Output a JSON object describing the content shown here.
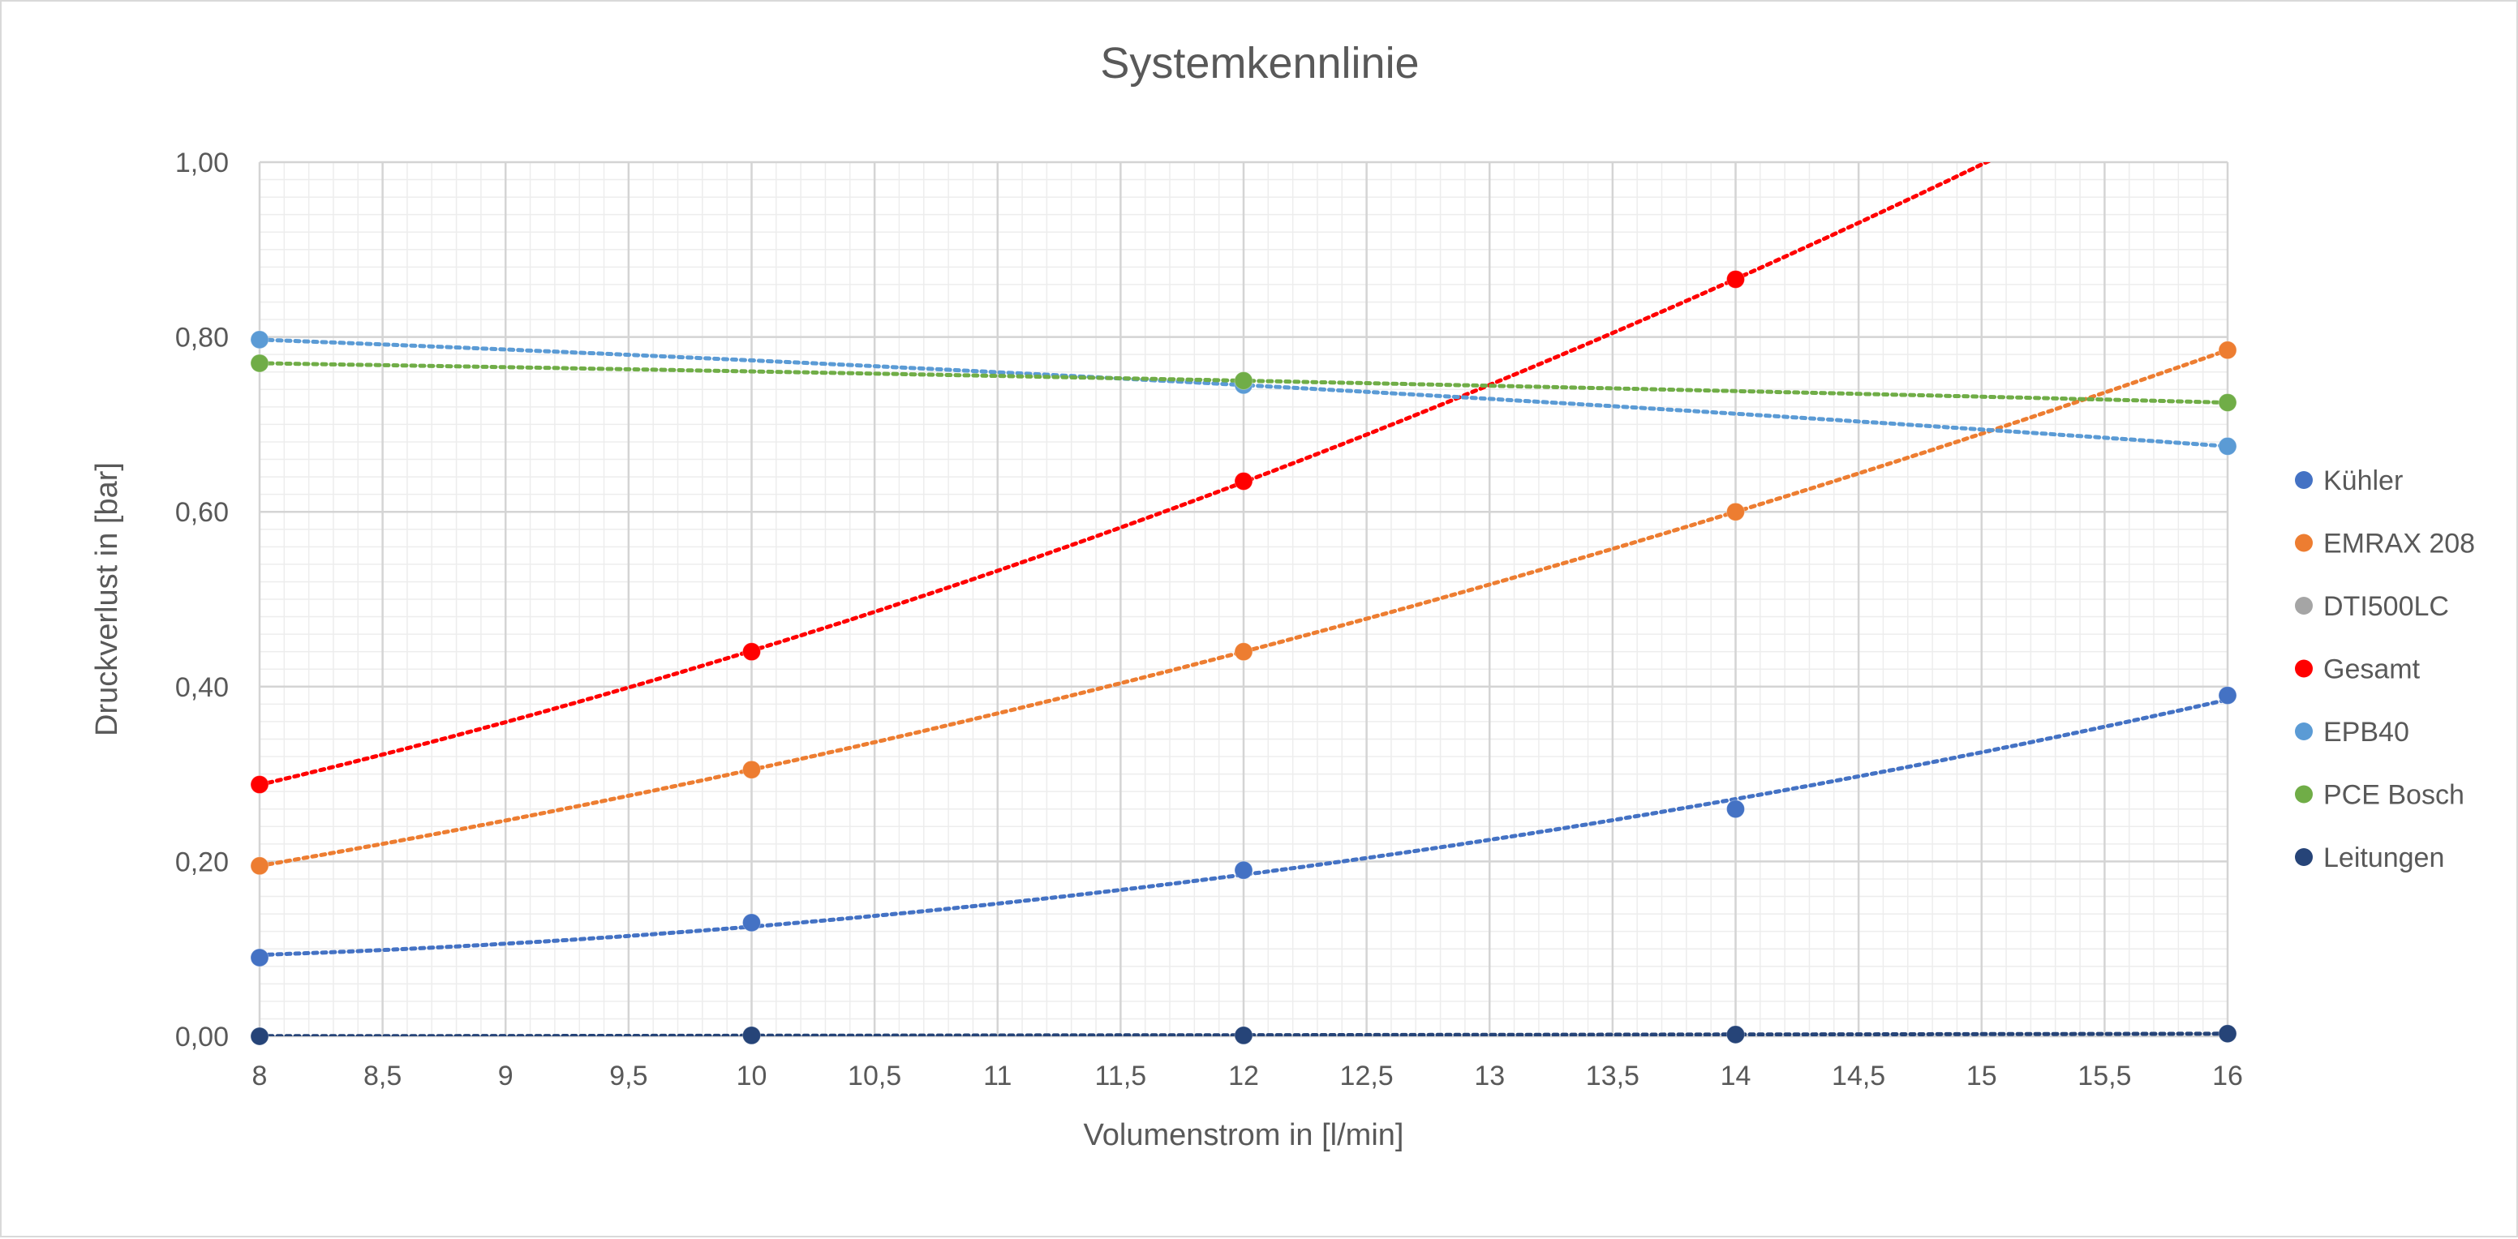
{
  "chart_data": {
    "type": "scatter",
    "title": "Systemkennlinie",
    "xlabel": "Volumenstrom in [l/min]",
    "ylabel": "Druckverlust in [bar]",
    "xlim": [
      8,
      16
    ],
    "ylim": [
      0,
      1
    ],
    "xticks": [
      "8",
      "8,5",
      "9",
      "9,5",
      "10",
      "10,5",
      "11",
      "11,5",
      "12",
      "12,5",
      "13",
      "13,5",
      "14",
      "14,5",
      "15",
      "15,5",
      "16"
    ],
    "yticks": [
      "0,00",
      "0,20",
      "0,40",
      "0,60",
      "0,80",
      "1,00"
    ],
    "grid": true,
    "legend_position": "right",
    "trendlines": "dotted",
    "series": [
      {
        "name": "Kühler",
        "color": "#4472c4",
        "x": [
          8,
          10,
          12,
          14,
          16
        ],
        "y": [
          0.09,
          0.13,
          0.19,
          0.26,
          0.39
        ]
      },
      {
        "name": "EMRAX 208",
        "color": "#ed7d31",
        "x": [
          8,
          10,
          12,
          14,
          16
        ],
        "y": [
          0.195,
          0.305,
          0.44,
          0.6,
          0.785
        ]
      },
      {
        "name": "DTI500LC",
        "color": "#a5a5a5",
        "x": [],
        "y": []
      },
      {
        "name": "Gesamt",
        "color": "#ff0000",
        "x": [
          8,
          10,
          12,
          14
        ],
        "y": [
          0.288,
          0.44,
          0.635,
          0.866
        ]
      },
      {
        "name": "EPB40",
        "color": "#5b9bd5",
        "x": [
          8,
          12,
          16
        ],
        "y": [
          0.797,
          0.745,
          0.675
        ]
      },
      {
        "name": "PCE Bosch",
        "color": "#70ad47",
        "x": [
          8,
          12,
          16
        ],
        "y": [
          0.77,
          0.75,
          0.725
        ]
      },
      {
        "name": "Leitungen",
        "color": "#264478",
        "x": [
          8,
          10,
          12,
          14,
          16
        ],
        "y": [
          0.0,
          0.001,
          0.001,
          0.002,
          0.003
        ]
      }
    ]
  }
}
